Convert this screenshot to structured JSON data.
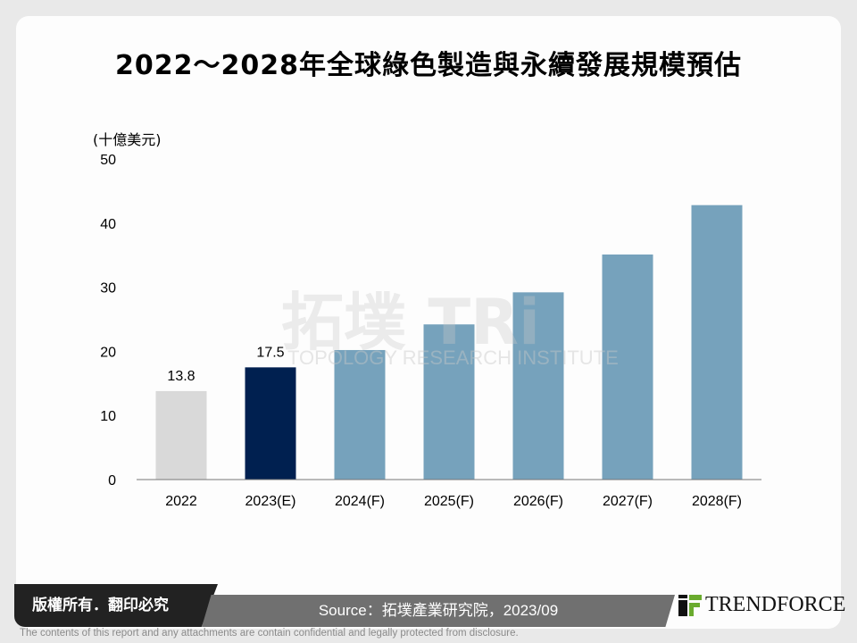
{
  "title": "2022～2028年全球綠色製造與永續發展規模預估",
  "chart_data": {
    "type": "bar",
    "ylabel": "(十億美元)",
    "ylim": [
      0,
      50
    ],
    "yticks": [
      0,
      10,
      20,
      30,
      40,
      50
    ],
    "categories": [
      "2022",
      "2023(E)",
      "2024(F)",
      "2025(F)",
      "2026(F)",
      "2027(F)",
      "2028(F)"
    ],
    "values": [
      13.8,
      17.5,
      20.2,
      24.2,
      29.2,
      35.1,
      42.8
    ],
    "data_labels": [
      "13.8",
      "17.5",
      "",
      "",
      "",
      "",
      ""
    ],
    "colors": [
      "#d9d9d9",
      "#002050",
      "#76a2bc",
      "#76a2bc",
      "#76a2bc",
      "#76a2bc",
      "#76a2bc"
    ],
    "grid": false
  },
  "watermark": {
    "main": "拓墣 TRi",
    "sub": "TOPOLOGY RESEARCH INSTITUTE"
  },
  "footer": {
    "copyright": "版權所有．翻印必究",
    "source": "Source：拓墣產業研究院，2023/09",
    "logo": "TRENDFORCE",
    "disclaimer": "The contents of this report and any attachments are contain confidential and legally protected from disclosure."
  }
}
